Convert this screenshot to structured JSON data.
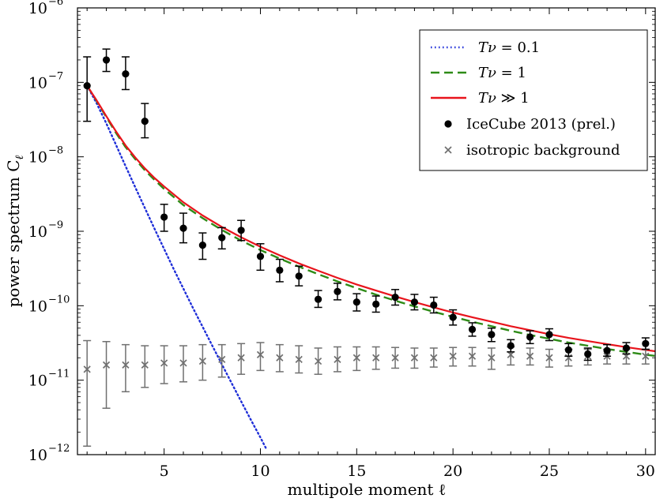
{
  "chart_data": {
    "type": "scatter",
    "title": "",
    "xlabel": "multipole moment ℓ",
    "ylabel": "power spectrum C",
    "ylabel_subscript": "ℓ",
    "xlim": [
      0.5,
      30.5
    ],
    "ylim_log10": [
      -12,
      -6
    ],
    "yscale": "log",
    "x_ticks": [
      5,
      10,
      15,
      20,
      25,
      30
    ],
    "x_tick_labels": [
      "5",
      "10",
      "15",
      "20",
      "25",
      "30"
    ],
    "y_ticks_exponents": [
      -12,
      -11,
      -10,
      -9,
      -8,
      -7,
      -6
    ],
    "y_tick_base": "10",
    "y_tick_exponent_labels": [
      "−12",
      "−11",
      "−10",
      "−9",
      "−8",
      "−7",
      "−6"
    ],
    "grid": false,
    "legend_position": "upper-right",
    "series": [
      {
        "name": "Tν = 0.1",
        "legend_math": "Tν",
        "legend_rhs": " = 0.1",
        "kind": "line",
        "style": "dotted",
        "color": "#1f2fd8",
        "x": [
          1,
          1.5,
          2,
          2.5,
          3,
          3.5,
          4,
          4.5,
          5,
          5.5,
          6,
          6.5,
          7,
          7.5,
          8,
          8.5,
          9,
          9.5,
          10,
          10.3
        ],
        "y": [
          9e-08,
          5.2e-08,
          2.8e-08,
          1.45e-08,
          7.5e-09,
          3.9e-09,
          2.05e-09,
          1.08e-09,
          5.8e-10,
          3.1e-10,
          1.7e-10,
          9.3e-11,
          5.2e-11,
          2.9e-11,
          1.63e-11,
          9.2e-12,
          5.2e-12,
          2.95e-12,
          1.7e-12,
          1.2e-12
        ]
      },
      {
        "name": "Tν = 1",
        "legend_math": "Tν",
        "legend_rhs": " = 1",
        "kind": "line",
        "style": "dashed",
        "color": "#2e8b17",
        "x": [
          1,
          1.5,
          2,
          2.5,
          3,
          3.5,
          4,
          4.5,
          5,
          6,
          7,
          8,
          9,
          10,
          11,
          12,
          13,
          14,
          15,
          16,
          17,
          18,
          19,
          20,
          21,
          22,
          23,
          24,
          25,
          26,
          27,
          28,
          29,
          30,
          30.5
        ],
        "y": [
          9e-08,
          5.6e-08,
          3.4e-08,
          2.1e-08,
          1.35e-08,
          9.3e-09,
          6.6e-09,
          4.9e-09,
          3.7e-09,
          2.25e-09,
          1.5e-09,
          1.04e-09,
          7.5e-10,
          5.6e-10,
          4.3e-10,
          3.35e-10,
          2.65e-10,
          2.12e-10,
          1.72e-10,
          1.41e-10,
          1.17e-10,
          9.8e-11,
          8.3e-11,
          7.1e-11,
          6.1e-11,
          5.3e-11,
          4.6e-11,
          4.05e-11,
          3.6e-11,
          3.2e-11,
          2.9e-11,
          2.62e-11,
          2.4e-11,
          2.2e-11,
          2.12e-11
        ]
      },
      {
        "name": "Tν ≫ 1",
        "legend_math": "Tν",
        "legend_rhs": " ≫ 1",
        "kind": "line",
        "style": "solid",
        "color": "#e8141c",
        "x": [
          1,
          1.5,
          2,
          2.5,
          3,
          3.5,
          4,
          4.5,
          5,
          6,
          7,
          8,
          9,
          10,
          11,
          12,
          13,
          14,
          15,
          16,
          17,
          18,
          19,
          20,
          21,
          22,
          23,
          24,
          25,
          26,
          27,
          28,
          29,
          30,
          30.5
        ],
        "y": [
          9e-08,
          5.7e-08,
          3.5e-08,
          2.2e-08,
          1.42e-08,
          9.8e-09,
          7e-09,
          5.2e-09,
          4e-09,
          2.45e-09,
          1.63e-09,
          1.14e-09,
          8.3e-10,
          6.2e-10,
          4.75e-10,
          3.7e-10,
          2.95e-10,
          2.37e-10,
          1.93e-10,
          1.6e-10,
          1.33e-10,
          1.12e-10,
          9.5e-11,
          8.1e-11,
          7e-11,
          6.1e-11,
          5.3e-11,
          4.7e-11,
          4.15e-11,
          3.7e-11,
          3.35e-11,
          3.05e-11,
          2.78e-11,
          2.55e-11,
          2.45e-11
        ]
      },
      {
        "name": "IceCube 2013 (prel.)",
        "kind": "points",
        "marker": "circle",
        "color": "#000000",
        "points": [
          {
            "x": 1,
            "y": 9e-08,
            "lo": 3e-08,
            "hi": 2.2e-07
          },
          {
            "x": 2,
            "y": 2e-07,
            "lo": 1.4e-07,
            "hi": 2.8e-07
          },
          {
            "x": 3,
            "y": 1.3e-07,
            "lo": 8e-08,
            "hi": 2.2e-07
          },
          {
            "x": 4,
            "y": 3e-08,
            "lo": 1.8e-08,
            "hi": 5.2e-08
          },
          {
            "x": 5,
            "y": 1.55e-09,
            "lo": 1e-09,
            "hi": 2.3e-09
          },
          {
            "x": 6,
            "y": 1.1e-09,
            "lo": 7e-10,
            "hi": 1.75e-09
          },
          {
            "x": 7,
            "y": 6.5e-10,
            "lo": 4.2e-10,
            "hi": 9.5e-10
          },
          {
            "x": 8,
            "y": 8.2e-10,
            "lo": 5.8e-10,
            "hi": 1.12e-09
          },
          {
            "x": 9,
            "y": 1.03e-09,
            "lo": 7.5e-10,
            "hi": 1.4e-09
          },
          {
            "x": 10,
            "y": 4.6e-10,
            "lo": 3e-10,
            "hi": 6.8e-10
          },
          {
            "x": 11,
            "y": 3e-10,
            "lo": 2.1e-10,
            "hi": 4.2e-10
          },
          {
            "x": 12,
            "y": 2.5e-10,
            "lo": 1.85e-10,
            "hi": 3.4e-10
          },
          {
            "x": 13,
            "y": 1.22e-10,
            "lo": 9.5e-11,
            "hi": 1.6e-10
          },
          {
            "x": 14,
            "y": 1.55e-10,
            "lo": 1.2e-10,
            "hi": 2e-10
          },
          {
            "x": 15,
            "y": 1.12e-10,
            "lo": 8.5e-11,
            "hi": 1.45e-10
          },
          {
            "x": 16,
            "y": 1.05e-10,
            "lo": 8.2e-11,
            "hi": 1.35e-10
          },
          {
            "x": 17,
            "y": 1.3e-10,
            "lo": 1.02e-10,
            "hi": 1.65e-10
          },
          {
            "x": 18,
            "y": 1.12e-10,
            "lo": 8.8e-11,
            "hi": 1.42e-10
          },
          {
            "x": 19,
            "y": 1.02e-10,
            "lo": 8e-11,
            "hi": 1.3e-10
          },
          {
            "x": 20,
            "y": 7e-11,
            "lo": 5.5e-11,
            "hi": 8.8e-11
          },
          {
            "x": 21,
            "y": 4.8e-11,
            "lo": 3.9e-11,
            "hi": 5.9e-11
          },
          {
            "x": 22,
            "y": 4.1e-11,
            "lo": 3.3e-11,
            "hi": 5e-11
          },
          {
            "x": 23,
            "y": 2.9e-11,
            "lo": 2.4e-11,
            "hi": 3.5e-11
          },
          {
            "x": 24,
            "y": 3.8e-11,
            "lo": 3.1e-11,
            "hi": 4.6e-11
          },
          {
            "x": 25,
            "y": 4.1e-11,
            "lo": 3.4e-11,
            "hi": 4.9e-11
          },
          {
            "x": 26,
            "y": 2.55e-11,
            "lo": 2.1e-11,
            "hi": 3.1e-11
          },
          {
            "x": 27,
            "y": 2.25e-11,
            "lo": 1.85e-11,
            "hi": 2.7e-11
          },
          {
            "x": 28,
            "y": 2.5e-11,
            "lo": 2.1e-11,
            "hi": 3e-11
          },
          {
            "x": 29,
            "y": 2.7e-11,
            "lo": 2.25e-11,
            "hi": 3.2e-11
          },
          {
            "x": 30,
            "y": 3.1e-11,
            "lo": 2.6e-11,
            "hi": 3.7e-11
          }
        ]
      },
      {
        "name": "isotropic background",
        "kind": "points",
        "marker": "x",
        "color": "#707070",
        "points": [
          {
            "x": 1,
            "y": 1.4e-11,
            "lo": 1.3e-12,
            "hi": 3.4e-11
          },
          {
            "x": 2,
            "y": 1.6e-11,
            "lo": 4.2e-12,
            "hi": 3.3e-11
          },
          {
            "x": 3,
            "y": 1.6e-11,
            "lo": 7e-12,
            "hi": 3e-11
          },
          {
            "x": 4,
            "y": 1.6e-11,
            "lo": 8e-12,
            "hi": 2.9e-11
          },
          {
            "x": 5,
            "y": 1.7e-11,
            "lo": 9e-12,
            "hi": 2.9e-11
          },
          {
            "x": 6,
            "y": 1.7e-11,
            "lo": 9.5e-12,
            "hi": 2.9e-11
          },
          {
            "x": 7,
            "y": 1.8e-11,
            "lo": 1e-11,
            "hi": 3e-11
          },
          {
            "x": 8,
            "y": 1.9e-11,
            "lo": 1.1e-11,
            "hi": 3e-11
          },
          {
            "x": 9,
            "y": 2e-11,
            "lo": 1.2e-11,
            "hi": 3.1e-11
          },
          {
            "x": 10,
            "y": 2.2e-11,
            "lo": 1.35e-11,
            "hi": 3.2e-11
          },
          {
            "x": 11,
            "y": 2e-11,
            "lo": 1.3e-11,
            "hi": 3e-11
          },
          {
            "x": 12,
            "y": 1.9e-11,
            "lo": 1.25e-11,
            "hi": 2.9e-11
          },
          {
            "x": 13,
            "y": 1.8e-11,
            "lo": 1.2e-11,
            "hi": 2.7e-11
          },
          {
            "x": 14,
            "y": 1.9e-11,
            "lo": 1.3e-11,
            "hi": 2.8e-11
          },
          {
            "x": 15,
            "y": 2e-11,
            "lo": 1.35e-11,
            "hi": 2.8e-11
          },
          {
            "x": 16,
            "y": 2e-11,
            "lo": 1.4e-11,
            "hi": 2.8e-11
          },
          {
            "x": 17,
            "y": 2e-11,
            "lo": 1.45e-11,
            "hi": 2.75e-11
          },
          {
            "x": 18,
            "y": 2e-11,
            "lo": 1.45e-11,
            "hi": 2.7e-11
          },
          {
            "x": 19,
            "y": 2e-11,
            "lo": 1.5e-11,
            "hi": 2.7e-11
          },
          {
            "x": 20,
            "y": 2.1e-11,
            "lo": 1.55e-11,
            "hi": 2.75e-11
          },
          {
            "x": 21,
            "y": 2.1e-11,
            "lo": 1.55e-11,
            "hi": 2.75e-11
          },
          {
            "x": 22,
            "y": 2e-11,
            "lo": 1.4e-11,
            "hi": 2.7e-11
          },
          {
            "x": 23,
            "y": 2.2e-11,
            "lo": 1.6e-11,
            "hi": 2.8e-11
          },
          {
            "x": 24,
            "y": 2.1e-11,
            "lo": 1.6e-11,
            "hi": 2.7e-11
          },
          {
            "x": 25,
            "y": 2e-11,
            "lo": 1.5e-11,
            "hi": 2.6e-11
          },
          {
            "x": 26,
            "y": 2e-11,
            "lo": 1.55e-11,
            "hi": 2.6e-11
          },
          {
            "x": 27,
            "y": 2.1e-11,
            "lo": 1.6e-11,
            "hi": 2.6e-11
          },
          {
            "x": 28,
            "y": 2.1e-11,
            "lo": 1.65e-11,
            "hi": 2.6e-11
          },
          {
            "x": 29,
            "y": 2.1e-11,
            "lo": 1.65e-11,
            "hi": 2.6e-11
          },
          {
            "x": 30,
            "y": 2.1e-11,
            "lo": 1.65e-11,
            "hi": 2.6e-11
          }
        ]
      }
    ]
  }
}
